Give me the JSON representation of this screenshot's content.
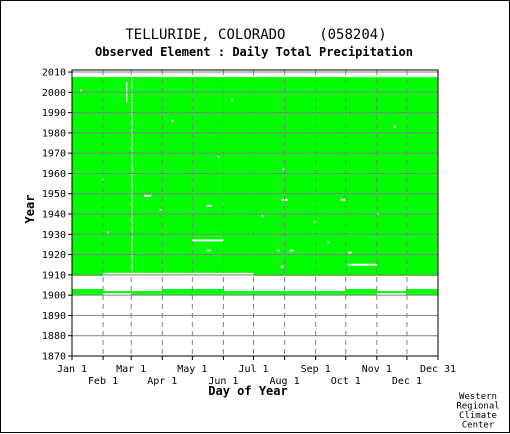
{
  "chart_data": {
    "type": "heatmap",
    "title": "TELLURIDE, COLORADO    (058204)",
    "subtitle": "Observed Element : Daily Total Precipitation",
    "xlabel": "Day of Year",
    "ylabel": "Year",
    "x_range": [
      1,
      366
    ],
    "y_range": [
      1870,
      2011
    ],
    "x_ticks_top_row": [
      {
        "label": "Jan 1",
        "day": 1
      },
      {
        "label": "Mar 1",
        "day": 60
      },
      {
        "label": "May 1",
        "day": 121
      },
      {
        "label": "Jul 1",
        "day": 182
      },
      {
        "label": "Sep 1",
        "day": 244
      },
      {
        "label": "Nov 1",
        "day": 305
      },
      {
        "label": "Dec 31",
        "day": 366
      }
    ],
    "x_ticks_bottom_row": [
      {
        "label": "Feb 1",
        "day": 32
      },
      {
        "label": "Apr 1",
        "day": 91
      },
      {
        "label": "Jun 1",
        "day": 152
      },
      {
        "label": "Aug 1",
        "day": 213
      },
      {
        "label": "Oct 1",
        "day": 274
      },
      {
        "label": "Dec 1",
        "day": 335
      }
    ],
    "y_ticks": [
      1870,
      1880,
      1890,
      1900,
      1910,
      1920,
      1930,
      1940,
      1950,
      1960,
      1970,
      1980,
      1990,
      2000,
      2010
    ],
    "colors": {
      "observed": "#00ff00",
      "missing": "#ffffff",
      "grid": "#808080"
    },
    "observed_blocks": [
      {
        "years": [
          1909.5,
          2007.5
        ],
        "days": [
          1,
          366
        ]
      },
      {
        "years": [
          1901,
          1903
        ],
        "days": [
          1,
          366
        ]
      },
      {
        "years": [
          1900,
          1901
        ],
        "days": [
          1,
          366
        ]
      }
    ],
    "missing_regions": [
      {
        "years": [
          1909.5,
          1911
        ],
        "days": [
          32,
          182
        ]
      },
      {
        "years": [
          2007.5,
          2008.5
        ],
        "days": [
          273,
          366
        ]
      },
      {
        "years": [
          1902,
          1903
        ],
        "days": [
          32,
          91
        ]
      },
      {
        "years": [
          1902,
          1903
        ],
        "days": [
          152,
          274
        ]
      },
      {
        "years": [
          1902,
          1903
        ],
        "days": [
          305,
          334
        ]
      },
      {
        "years": [
          1900,
          1901
        ],
        "days": [
          305,
          334
        ]
      },
      {
        "years": [
          1900,
          1901
        ],
        "days": [
          32,
          60
        ]
      }
    ],
    "missing_segments": [
      {
        "year": 1927,
        "days": [
          121,
          152
        ]
      },
      {
        "year": 1915,
        "days": [
          276,
          305
        ]
      },
      {
        "year": 1947,
        "days": [
          210,
          216
        ]
      },
      {
        "year": 1947,
        "days": [
          269,
          274
        ]
      },
      {
        "year": 1949,
        "days": [
          73,
          80
        ]
      },
      {
        "year": 1922,
        "days": [
          135,
          139
        ]
      },
      {
        "year": 1922,
        "days": [
          205,
          208
        ]
      },
      {
        "year": 1922,
        "days": [
          218,
          222
        ]
      },
      {
        "year": 1914,
        "days": [
          209,
          212
        ]
      },
      {
        "year": 1921,
        "days": [
          276,
          280
        ]
      },
      {
        "year": 1957,
        "days": [
          31,
          33
        ]
      },
      {
        "year": 2001,
        "days": [
          9,
          11
        ]
      },
      {
        "year": 1942,
        "days": [
          88,
          90
        ]
      },
      {
        "year": 1944,
        "days": [
          135,
          140
        ]
      },
      {
        "year": 1939,
        "days": [
          190,
          192
        ]
      },
      {
        "year": 1931,
        "days": [
          36,
          38
        ]
      },
      {
        "year": 1962,
        "days": [
          211,
          213
        ]
      },
      {
        "year": 1926,
        "days": [
          256,
          258
        ]
      },
      {
        "year": 1968,
        "days": [
          146,
          148
        ]
      },
      {
        "year": 1983,
        "days": [
          322,
          324
        ]
      },
      {
        "year": 1940,
        "days": [
          305,
          307
        ]
      },
      {
        "year": 1936,
        "days": [
          242,
          244
        ]
      },
      {
        "year": 1986,
        "days": [
          100,
          102
        ]
      },
      {
        "year": 1996,
        "days": [
          160,
          162
        ]
      }
    ],
    "missing_columns": [
      {
        "day": 60,
        "years": [
          1911,
          2007
        ]
      },
      {
        "day": 55,
        "years": [
          1995,
          2005
        ]
      }
    ],
    "credit": [
      "Western",
      "Regional",
      "Climate",
      "Center"
    ]
  }
}
